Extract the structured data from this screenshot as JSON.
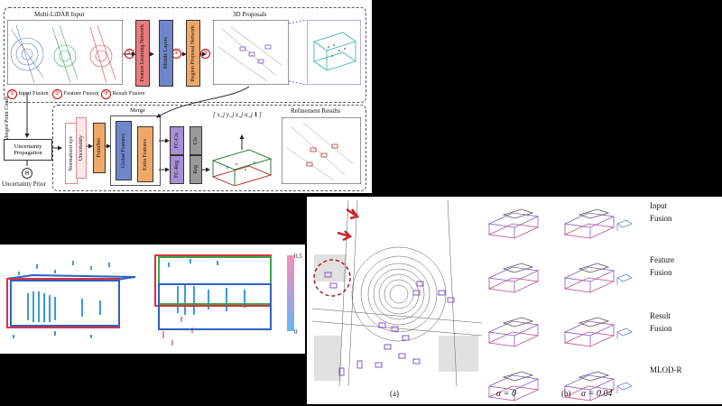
{
  "pipeline": {
    "input_title": "Multi-LiDAR Input",
    "proposals_title": "3D Proposals",
    "legend": {
      "input": {
        "num": "①",
        "label": "Input Fusion"
      },
      "feature": {
        "num": "②",
        "label": "Feature Fusion"
      },
      "result": {
        "num": "③",
        "label": "Result Fusion"
      }
    },
    "fln": "Feature Learning Network",
    "middle": "Middle Layers",
    "rpn": "Region Proposal Network",
    "merged": "Merged Point Cloud",
    "uncertainty_prop": "Uncertainty Propagation",
    "uncertainty_prior": "Uncertainty Prior",
    "theta": "Θ",
    "norm_xyz": "Normalized xyz",
    "uncert": "Uncertainty",
    "pointnet": "PointNet",
    "merge": "Merge",
    "global": "Global Features",
    "extra": "Extra Features",
    "fc_cls": "FC-Cls",
    "fc_reg": "FC-Reg",
    "cls": "Cls",
    "reg": "Reg",
    "refine_title": "Refinement Results",
    "vector_row": "x_j  y_j  z_j  u_j",
    "one": "1"
  },
  "colorbar": {
    "max": "0.5",
    "min": "0"
  },
  "fusion": {
    "rows": [
      "Input\nFusion",
      "Feature\nFusion",
      "Result\nFusion",
      "MLOD-R"
    ],
    "alpha0": "α = 0",
    "alpha1": "α = 0.04",
    "cap_a": "(a)",
    "cap_b": "(b)"
  },
  "colors": {
    "fln": "#e97c7c",
    "middle": "#6f86c9",
    "rpn": "#f0a86a",
    "fc": "#a98fd3",
    "gray": "#9a9a9a",
    "global": "#6f86c9",
    "extra": "#f0a86a"
  }
}
